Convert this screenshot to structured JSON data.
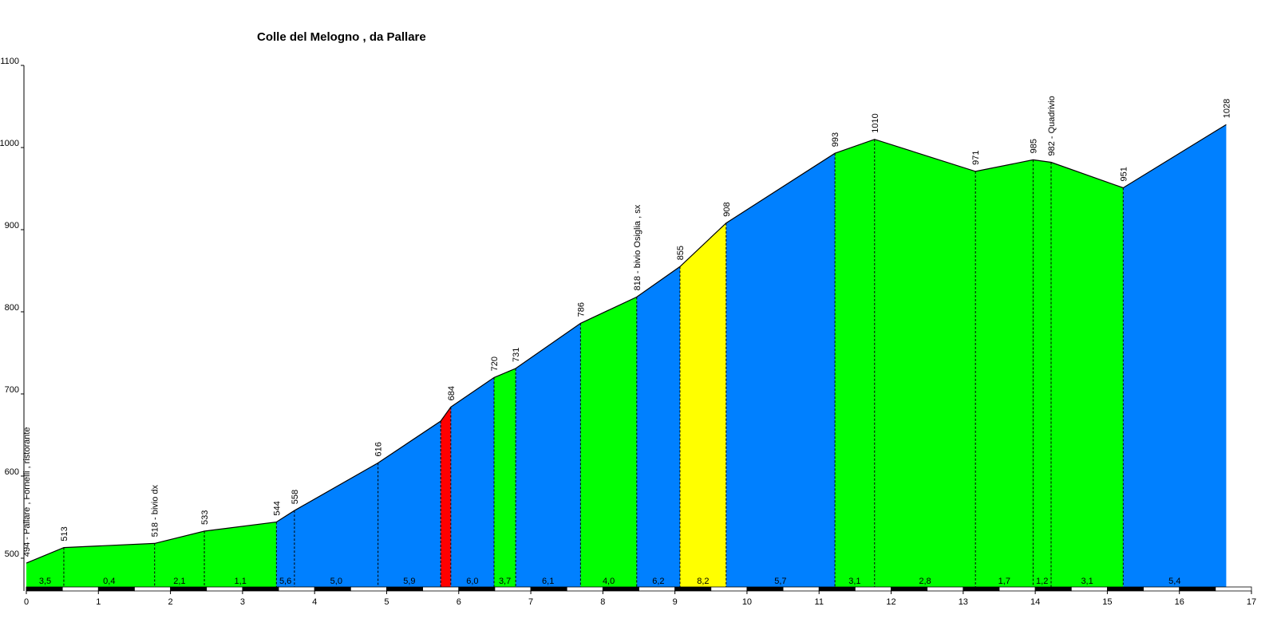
{
  "chart_data": {
    "type": "area",
    "title": "Colle del Melogno , da Pallare",
    "xlabel": "",
    "ylabel": "",
    "xlim": [
      0,
      17
    ],
    "ylim": [
      465,
      1100
    ],
    "x_ticks": [
      "0",
      "1",
      "2",
      "3",
      "4",
      "5",
      "6",
      "7",
      "8",
      "9",
      "10",
      "11",
      "12",
      "13",
      "14",
      "15",
      "16",
      "17"
    ],
    "y_ticks": [
      {
        "v": 500,
        "label": "500"
      },
      {
        "v": 600,
        "label": "600"
      },
      {
        "v": 700,
        "label": "700"
      },
      {
        "v": 800,
        "label": "800"
      },
      {
        "v": 900,
        "label": "900"
      },
      {
        "v": 1000,
        "label": "1000"
      },
      {
        "v": 1100,
        "label": "1100"
      }
    ],
    "grid": false,
    "colors": {
      "easy": "#00ff00",
      "medium": "#0080ff",
      "steep": "#ffff00",
      "very_steep": "#ff0000",
      "axis": "#000000"
    },
    "points": [
      {
        "x": 0.0,
        "y": 494,
        "label": "494 - Pallare , Fornelli , ristorante"
      },
      {
        "x": 0.52,
        "y": 513,
        "label": "513"
      },
      {
        "x": 1.78,
        "y": 518,
        "label": "518 - bivio dx"
      },
      {
        "x": 2.47,
        "y": 533,
        "label": "533"
      },
      {
        "x": 3.47,
        "y": 544,
        "label": "544"
      },
      {
        "x": 3.72,
        "y": 558,
        "label": "558"
      },
      {
        "x": 4.88,
        "y": 616,
        "label": "616"
      },
      {
        "x": 5.75,
        "y": 667,
        "label": ""
      },
      {
        "x": 5.89,
        "y": 684,
        "label": "684"
      },
      {
        "x": 6.49,
        "y": 720,
        "label": "720"
      },
      {
        "x": 6.79,
        "y": 731,
        "label": "731"
      },
      {
        "x": 7.69,
        "y": 786,
        "label": "786"
      },
      {
        "x": 8.47,
        "y": 818,
        "label": "818 - bivio Osiglia , sx"
      },
      {
        "x": 9.07,
        "y": 855,
        "label": "855"
      },
      {
        "x": 9.71,
        "y": 908,
        "label": "908"
      },
      {
        "x": 11.22,
        "y": 993,
        "label": "993"
      },
      {
        "x": 11.77,
        "y": 1010,
        "label": "1010"
      },
      {
        "x": 13.17,
        "y": 971,
        "label": "971"
      },
      {
        "x": 13.97,
        "y": 985,
        "label": "985"
      },
      {
        "x": 14.22,
        "y": 982,
        "label": "982 - Quadrivio"
      },
      {
        "x": 15.22,
        "y": 951,
        "label": "951"
      },
      {
        "x": 16.65,
        "y": 1028,
        "label": "1028"
      }
    ],
    "segments": [
      {
        "from": 0.0,
        "to": 0.52,
        "color": "easy",
        "gradient": "3,5"
      },
      {
        "from": 0.52,
        "to": 1.78,
        "color": "easy",
        "gradient": "0,4"
      },
      {
        "from": 1.78,
        "to": 2.47,
        "color": "easy",
        "gradient": "2,1"
      },
      {
        "from": 2.47,
        "to": 3.47,
        "color": "easy",
        "gradient": "1,1"
      },
      {
        "from": 3.47,
        "to": 3.72,
        "color": "medium",
        "gradient": "5,6"
      },
      {
        "from": 3.72,
        "to": 4.88,
        "color": "medium",
        "gradient": "5,0"
      },
      {
        "from": 4.88,
        "to": 5.75,
        "color": "medium",
        "gradient": "5,9"
      },
      {
        "from": 5.75,
        "to": 5.89,
        "color": "very_steep",
        "gradient": ""
      },
      {
        "from": 5.89,
        "to": 6.49,
        "color": "medium",
        "gradient": "6,0"
      },
      {
        "from": 6.49,
        "to": 6.79,
        "color": "easy",
        "gradient": "3,7"
      },
      {
        "from": 6.79,
        "to": 7.69,
        "color": "medium",
        "gradient": "6,1"
      },
      {
        "from": 7.69,
        "to": 8.47,
        "color": "easy",
        "gradient": "4,0"
      },
      {
        "from": 8.47,
        "to": 9.07,
        "color": "medium",
        "gradient": "6,2"
      },
      {
        "from": 9.07,
        "to": 9.71,
        "color": "steep",
        "gradient": "8,2"
      },
      {
        "from": 9.71,
        "to": 11.22,
        "color": "medium",
        "gradient": "5,7"
      },
      {
        "from": 11.22,
        "to": 11.77,
        "color": "easy",
        "gradient": "3,1"
      },
      {
        "from": 11.77,
        "to": 13.17,
        "color": "easy",
        "gradient": "2,8"
      },
      {
        "from": 13.17,
        "to": 13.97,
        "color": "easy",
        "gradient": "1,7"
      },
      {
        "from": 13.97,
        "to": 14.22,
        "color": "easy",
        "gradient": "1,2"
      },
      {
        "from": 14.22,
        "to": 15.22,
        "color": "easy",
        "gradient": "3,1"
      },
      {
        "from": 15.22,
        "to": 16.65,
        "color": "medium",
        "gradient": "5,4"
      }
    ]
  }
}
